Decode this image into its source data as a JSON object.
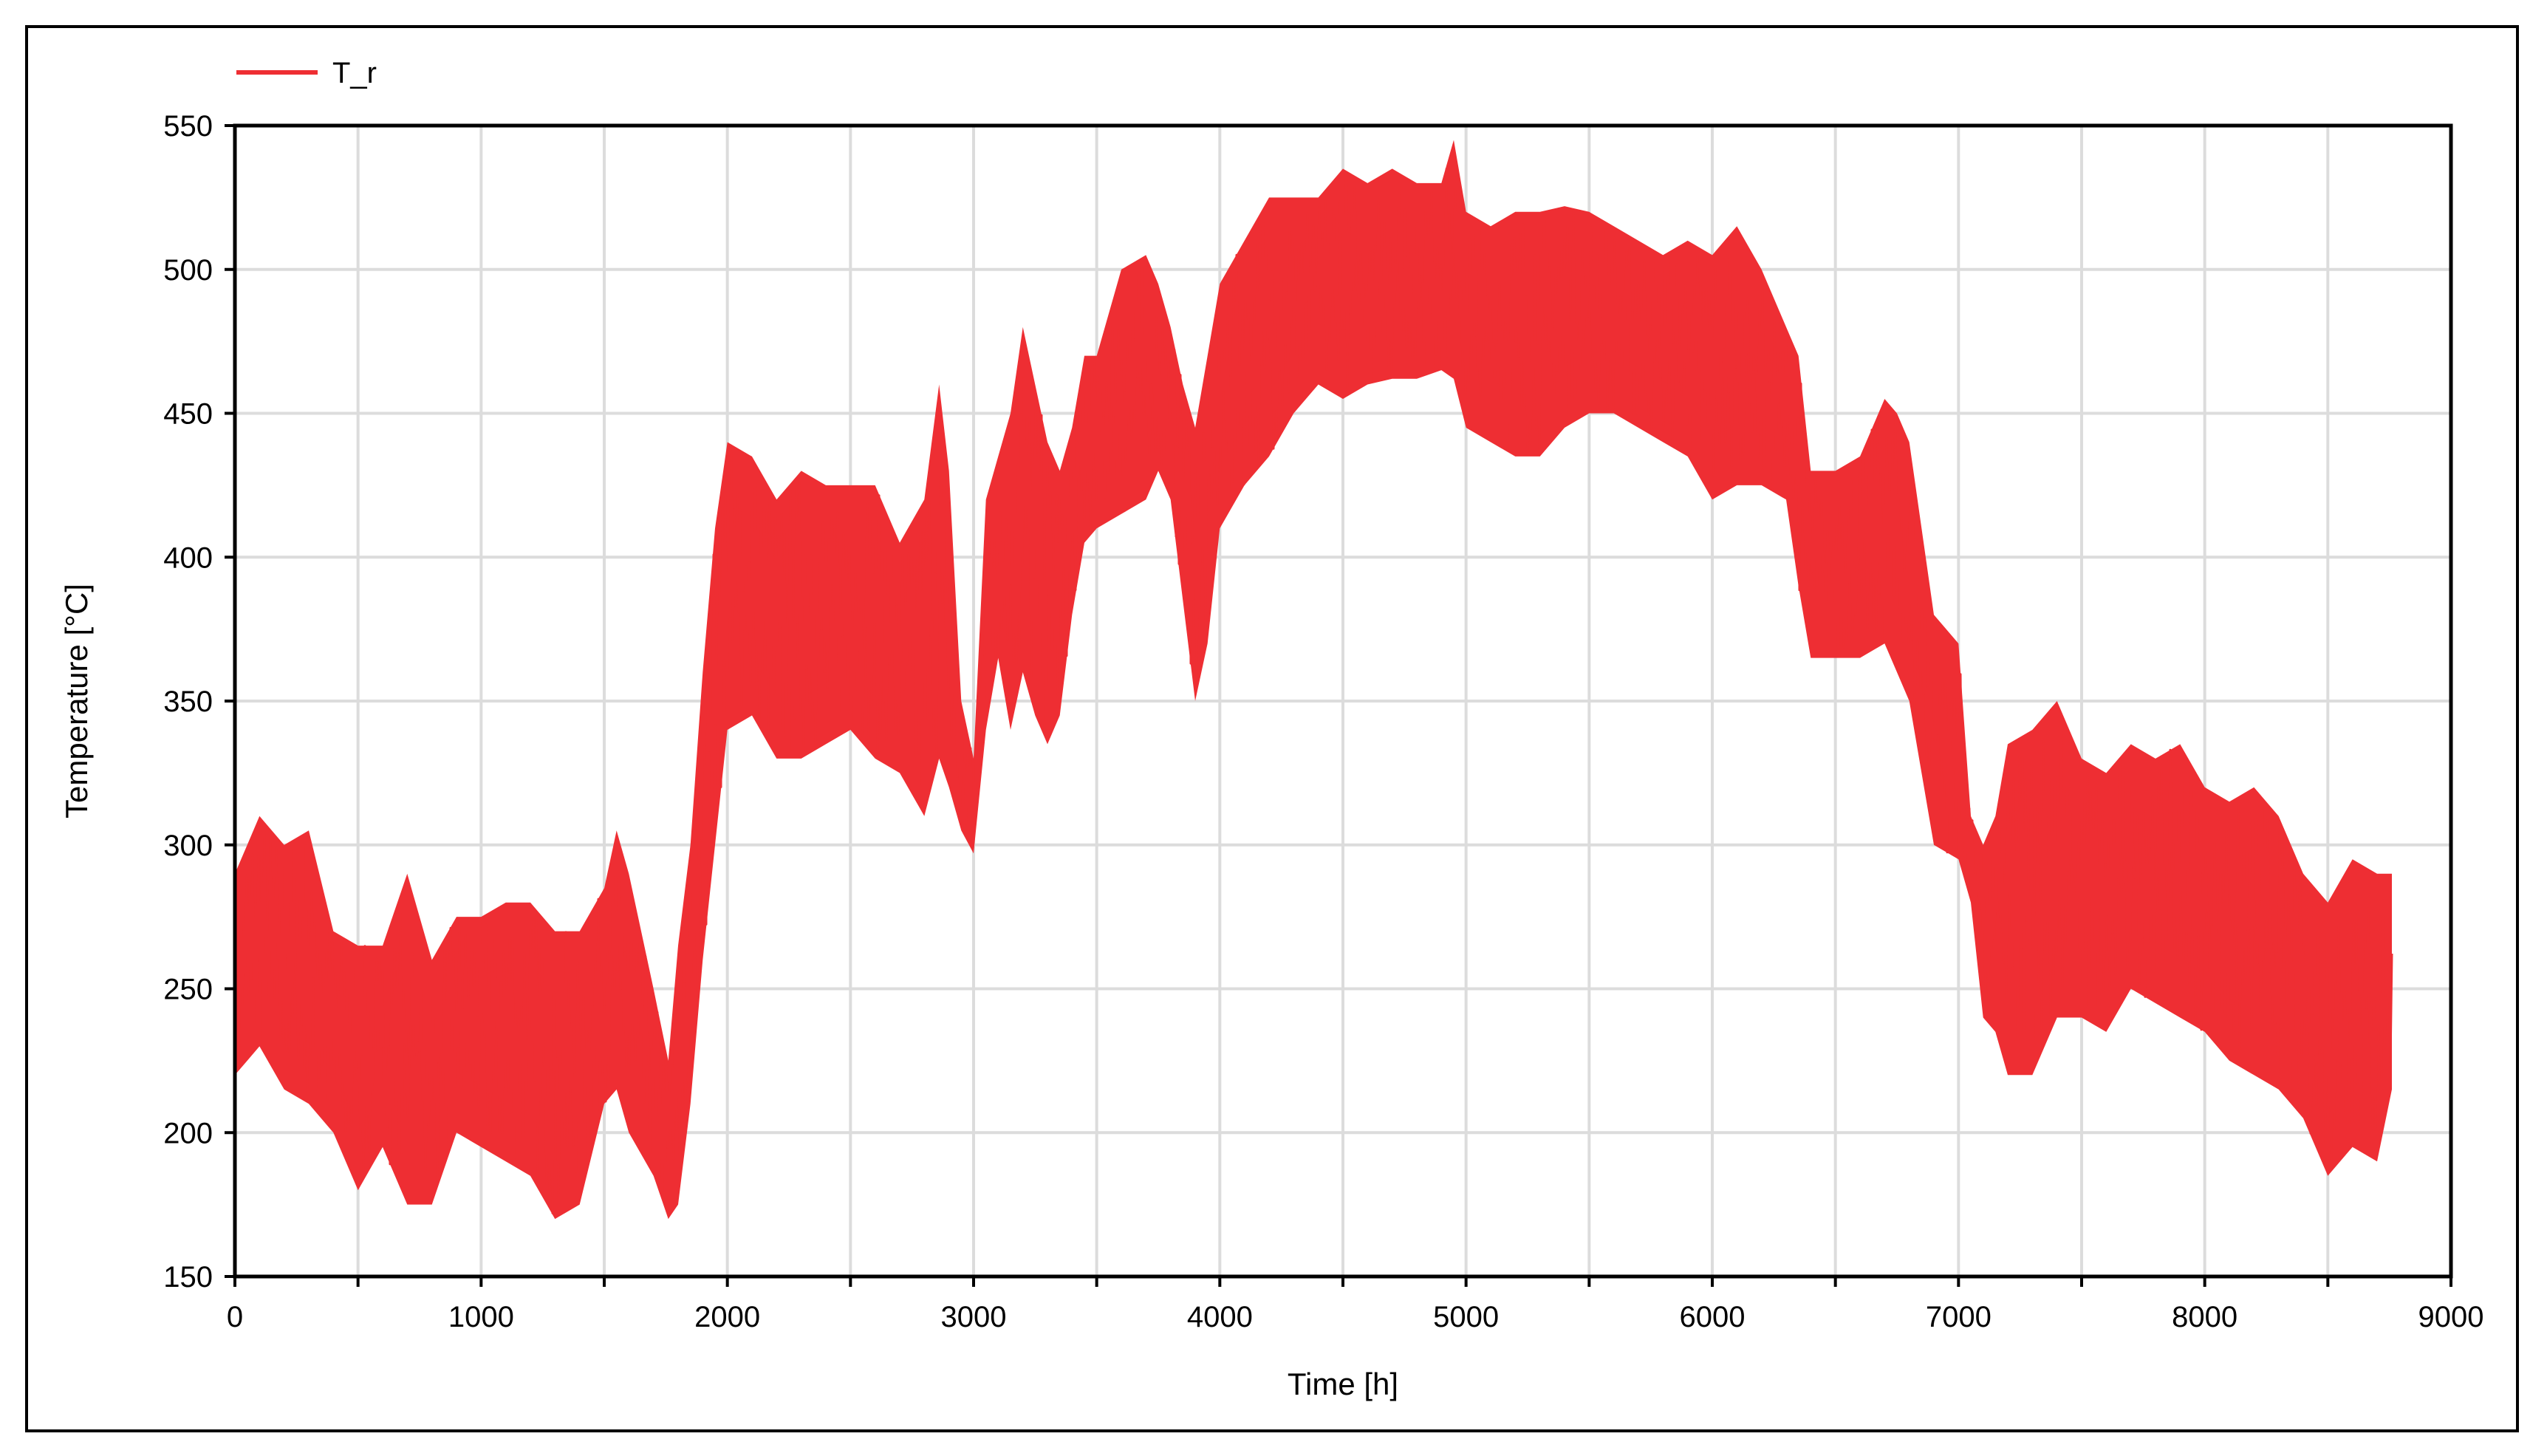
{
  "chart_data": {
    "type": "line",
    "xlabel": "Time [h]",
    "ylabel": "Temperature [°C]",
    "xlim": [
      0,
      9000
    ],
    "ylim": [
      150,
      550
    ],
    "xticks": [
      0,
      1000,
      2000,
      3000,
      4000,
      5000,
      6000,
      7000,
      8000,
      9000
    ],
    "yticks": [
      150,
      200,
      250,
      300,
      350,
      400,
      450,
      500,
      550
    ],
    "grid": true,
    "legend_position": "top-left",
    "series": [
      {
        "name": "T_r",
        "color": "#ee2e33",
        "envelope": {
          "x": [
            0,
            50,
            100,
            200,
            300,
            400,
            500,
            600,
            700,
            800,
            900,
            1000,
            1100,
            1200,
            1300,
            1400,
            1500,
            1550,
            1600,
            1700,
            1760,
            1800,
            1850,
            1900,
            1950,
            2000,
            2100,
            2200,
            2300,
            2400,
            2500,
            2600,
            2700,
            2800,
            2860,
            2900,
            2950,
            3000,
            3050,
            3100,
            3150,
            3200,
            3250,
            3300,
            3350,
            3400,
            3450,
            3500,
            3600,
            3700,
            3750,
            3800,
            3850,
            3900,
            3950,
            4000,
            4100,
            4200,
            4300,
            4400,
            4500,
            4600,
            4700,
            4800,
            4900,
            4950,
            5000,
            5100,
            5200,
            5300,
            5400,
            5500,
            5600,
            5700,
            5800,
            5900,
            6000,
            6100,
            6200,
            6300,
            6350,
            6400,
            6500,
            6600,
            6700,
            6750,
            6800,
            6900,
            7000,
            7050,
            7100,
            7150,
            7200,
            7300,
            7400,
            7500,
            7600,
            7700,
            7800,
            7900,
            8000,
            8100,
            8200,
            8300,
            8400,
            8500,
            8600,
            8700,
            8760
          ],
          "upper": [
            290,
            300,
            310,
            300,
            305,
            270,
            265,
            265,
            290,
            260,
            275,
            275,
            280,
            280,
            270,
            270,
            285,
            305,
            290,
            250,
            225,
            265,
            300,
            360,
            410,
            440,
            435,
            420,
            430,
            425,
            425,
            425,
            405,
            420,
            460,
            430,
            350,
            330,
            420,
            435,
            450,
            480,
            460,
            440,
            430,
            445,
            470,
            470,
            500,
            505,
            495,
            480,
            460,
            445,
            470,
            495,
            510,
            525,
            525,
            525,
            535,
            530,
            535,
            530,
            530,
            545,
            520,
            515,
            520,
            520,
            522,
            520,
            515,
            510,
            505,
            510,
            505,
            515,
            500,
            480,
            470,
            430,
            430,
            435,
            455,
            450,
            440,
            380,
            370,
            310,
            300,
            310,
            335,
            340,
            350,
            330,
            325,
            335,
            330,
            335,
            320,
            315,
            320,
            310,
            290,
            280,
            295,
            290,
            290
          ],
          "lower": [
            220,
            225,
            230,
            215,
            210,
            200,
            180,
            195,
            175,
            175,
            200,
            195,
            190,
            185,
            170,
            175,
            210,
            215,
            200,
            185,
            170,
            175,
            210,
            260,
            300,
            340,
            345,
            330,
            330,
            335,
            340,
            330,
            325,
            310,
            330,
            320,
            305,
            297,
            340,
            365,
            340,
            360,
            345,
            335,
            345,
            380,
            405,
            410,
            415,
            420,
            430,
            420,
            385,
            350,
            370,
            410,
            425,
            435,
            450,
            460,
            455,
            460,
            462,
            462,
            465,
            462,
            445,
            440,
            435,
            435,
            445,
            450,
            450,
            445,
            440,
            435,
            420,
            425,
            425,
            420,
            390,
            365,
            365,
            365,
            370,
            360,
            350,
            300,
            295,
            280,
            240,
            235,
            220,
            220,
            240,
            240,
            235,
            250,
            245,
            240,
            235,
            225,
            220,
            215,
            205,
            185,
            195,
            190,
            215
          ]
        }
      }
    ]
  }
}
